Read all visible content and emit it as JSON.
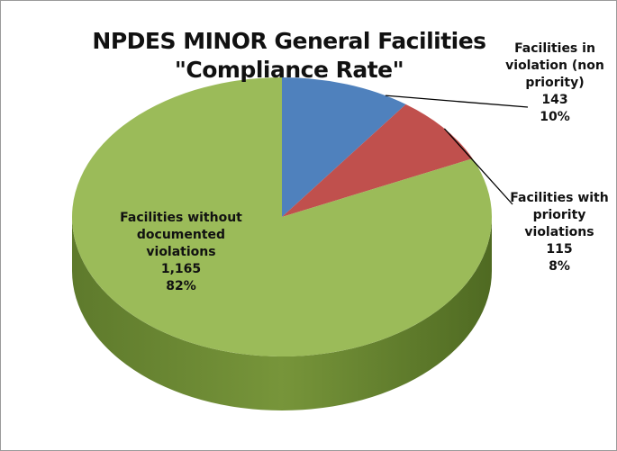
{
  "chart_data": {
    "type": "pie",
    "title": [
      "NPDES MINOR General Facilities",
      "\"Compliance Rate\""
    ],
    "categories": [
      "Facilities in violation (non priority)",
      "Facilities with priority violations",
      "Facilities without documented violations"
    ],
    "values": [
      143,
      115,
      1165
    ],
    "value_labels": [
      "143",
      "115",
      "1,165"
    ],
    "percents": [
      10,
      8,
      82
    ],
    "percent_labels": [
      "10%",
      "8%",
      "82%"
    ],
    "colors": [
      "#4f81bd",
      "#c0504d",
      "#9bbb59"
    ]
  }
}
